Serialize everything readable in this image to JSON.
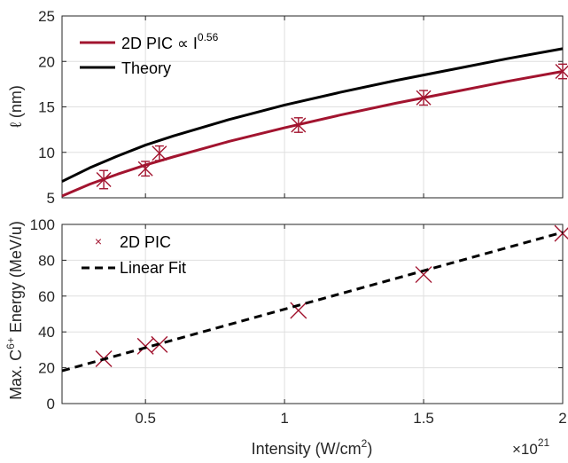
{
  "colors": {
    "pic": "#a2142f",
    "theory": "#000000",
    "axis": "#262626",
    "grid": "#dfdfdf"
  },
  "chart_data": [
    {
      "type": "line",
      "ylabel": "ℓ (nm)",
      "xlim": [
        0.2,
        2.0
      ],
      "ylim": [
        5,
        25
      ],
      "y_ticks": [
        "5",
        "10",
        "15",
        "20",
        "25"
      ],
      "grid": true,
      "legend": {
        "placement": "top-left",
        "items": [
          {
            "label": "2D PIC ∝ I",
            "superscript": "0.56",
            "color": "#a2142f"
          },
          {
            "label": "Theory",
            "color": "#000000"
          }
        ]
      },
      "series": [
        {
          "name": "2D PIC ∝ I^0.56",
          "kind": "fit",
          "x": [
            0.2,
            0.3,
            0.4,
            0.5,
            0.6,
            0.8,
            1.0,
            1.2,
            1.4,
            1.6,
            1.8,
            2.0
          ],
          "y": [
            5.2,
            6.5,
            7.6,
            8.6,
            9.5,
            11.2,
            12.7,
            14.1,
            15.4,
            16.6,
            17.8,
            18.9
          ]
        },
        {
          "name": "Theory",
          "kind": "line",
          "x": [
            0.2,
            0.3,
            0.4,
            0.5,
            0.6,
            0.8,
            1.0,
            1.2,
            1.4,
            1.6,
            1.8,
            2.0
          ],
          "y": [
            6.8,
            8.3,
            9.6,
            10.8,
            11.8,
            13.6,
            15.2,
            16.6,
            17.9,
            19.1,
            20.3,
            21.4
          ]
        },
        {
          "name": "2D PIC data",
          "kind": "errorbar",
          "x": [
            0.35,
            0.5,
            0.55,
            1.05,
            1.5,
            2.0
          ],
          "y": [
            7.0,
            8.2,
            9.9,
            13.0,
            16.0,
            18.9
          ],
          "err": [
            1.0,
            0.8,
            0.8,
            0.8,
            0.8,
            0.8
          ]
        }
      ]
    },
    {
      "type": "scatter",
      "ylabel": "Max. C6+ Energy (MeV/u)",
      "ylabel_parts": {
        "prefix": "Max. C",
        "superscript": "6+",
        "suffix": " Energy (MeV/u)"
      },
      "xlabel": "Intensity (W/cm2)",
      "xlabel_parts": {
        "prefix": "Intensity (W/cm",
        "superscript": "2",
        "suffix": ")"
      },
      "x_scale_label": {
        "base": "×10",
        "exponent": "21"
      },
      "xlim": [
        0.2,
        2.0
      ],
      "ylim": [
        0,
        100
      ],
      "x_ticks": [
        "0.5",
        "1",
        "1.5",
        "2"
      ],
      "y_ticks": [
        "0",
        "20",
        "40",
        "60",
        "80",
        "100"
      ],
      "grid": true,
      "legend": {
        "placement": "top-left",
        "items": [
          {
            "label": "2D PIC",
            "color": "#a2142f",
            "marker": "×"
          },
          {
            "label": "Linear Fit",
            "color": "#000000",
            "dashed": true
          }
        ]
      },
      "series": [
        {
          "name": "2D PIC",
          "kind": "markers",
          "x": [
            0.35,
            0.5,
            0.55,
            1.05,
            1.5,
            2.0
          ],
          "y": [
            25,
            32,
            33,
            52,
            72,
            95
          ]
        },
        {
          "name": "Linear Fit",
          "kind": "dashed",
          "x": [
            0.2,
            2.0
          ],
          "y": [
            18.3,
            95.6
          ]
        }
      ]
    }
  ]
}
